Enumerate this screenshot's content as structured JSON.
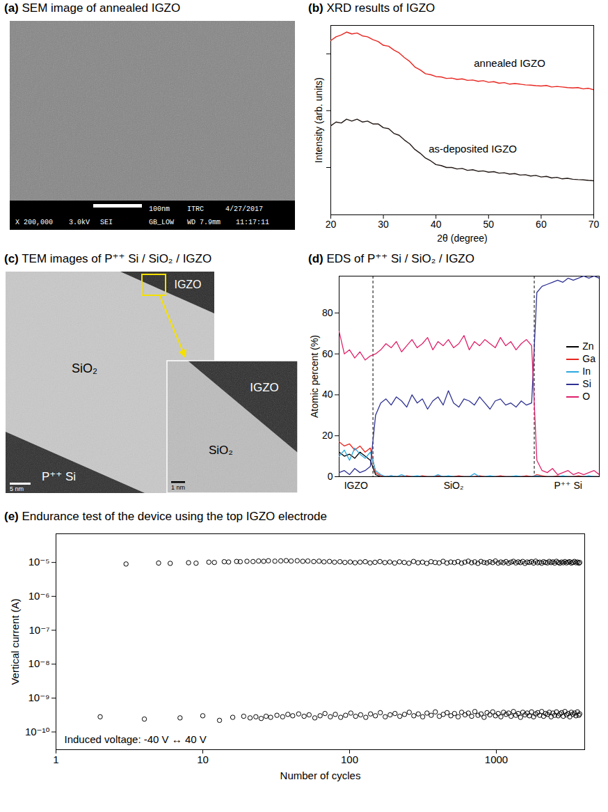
{
  "chart_data": [
    {
      "type": "image",
      "title": "(a) SEM image of annealed IGZO",
      "annotations": [
        "X 200,000",
        "3.0kV",
        "SEI",
        "100nm",
        "ITRC",
        "4/27/2017",
        "GB_LOW",
        "WD 7.9mm",
        "11:17:11"
      ]
    },
    {
      "type": "line",
      "title": "(b) XRD results of IGZO",
      "x_label": "2θ (degree)",
      "y_label": "Intensity (arb. units)",
      "xlim": [
        20,
        70
      ],
      "xticks": [
        20,
        30,
        40,
        50,
        60,
        70
      ],
      "ylim": [
        0,
        10
      ],
      "yticks": [
        2.5,
        5.5,
        8.5
      ],
      "tick_labels": "x",
      "x": [
        20,
        21,
        22,
        23,
        24,
        25,
        26,
        27,
        28,
        29,
        30,
        31,
        32,
        33,
        34,
        35,
        36,
        37,
        38,
        39,
        40,
        41,
        42,
        43,
        44,
        45,
        46,
        47,
        48,
        49,
        50,
        51,
        52,
        53,
        54,
        55,
        56,
        57,
        58,
        59,
        60,
        61,
        62,
        63,
        64,
        65,
        66,
        67,
        68,
        69,
        70
      ],
      "series": [
        {
          "name": "annealed IGZO",
          "color": "#e8251f",
          "values": [
            9.2,
            9.4,
            9.5,
            9.65,
            9.55,
            9.6,
            9.45,
            9.4,
            9.25,
            9.15,
            8.95,
            8.9,
            8.7,
            8.55,
            8.3,
            8.1,
            7.8,
            7.65,
            7.45,
            7.4,
            7.3,
            7.28,
            7.2,
            7.22,
            7.15,
            7.18,
            7.1,
            7.12,
            7.05,
            7.08,
            7.0,
            7.03,
            6.95,
            6.98,
            6.9,
            6.93,
            6.9,
            6.86,
            6.85,
            6.82,
            6.8,
            6.83,
            6.75,
            6.78,
            6.75,
            6.72,
            6.7,
            6.72,
            6.65,
            6.68,
            6.6
          ]
        },
        {
          "name": "as-deposited IGZO",
          "color": "#231815",
          "values": [
            4.7,
            4.9,
            4.85,
            5.05,
            4.95,
            5.05,
            4.9,
            4.95,
            4.8,
            4.8,
            4.6,
            4.55,
            4.3,
            4.2,
            3.95,
            3.75,
            3.45,
            3.25,
            3.0,
            2.85,
            2.65,
            2.6,
            2.5,
            2.5,
            2.42,
            2.45,
            2.35,
            2.38,
            2.3,
            2.32,
            2.25,
            2.28,
            2.2,
            2.22,
            2.15,
            2.18,
            2.1,
            2.12,
            2.05,
            2.08,
            2.0,
            2.03,
            1.95,
            1.98,
            1.9,
            1.93,
            1.88,
            1.86,
            1.85,
            1.82,
            1.8
          ]
        }
      ]
    },
    {
      "type": "image",
      "title": "(c) TEM images of P⁺⁺ Si / SiO₂ / IGZO",
      "annotations": [
        "IGZO",
        "SiO₂",
        "P⁺⁺ Si",
        "5 nm",
        "IGZO",
        "SiO₂",
        "1 nm"
      ]
    },
    {
      "type": "line",
      "title": "(d) EDS of P⁺⁺ Si / SiO₂ / IGZO",
      "y_label": "Atomic percent (%)",
      "xlim": [
        0,
        100
      ],
      "xticks": [
        {
          "value": 6.5,
          "label": "IGZO"
        },
        {
          "value": 44,
          "label": "SiO₂"
        },
        {
          "value": 88,
          "label": "P⁺⁺ Si"
        }
      ],
      "ylim": [
        0,
        98
      ],
      "yticks": [
        0,
        20,
        40,
        60,
        80
      ],
      "boundaries": [
        13,
        75
      ],
      "legend": "right",
      "x": [
        0,
        2,
        4,
        6,
        8,
        10,
        12,
        14,
        16,
        18,
        20,
        22,
        24,
        26,
        28,
        30,
        32,
        34,
        36,
        38,
        40,
        42,
        44,
        46,
        48,
        50,
        52,
        54,
        56,
        58,
        60,
        62,
        64,
        66,
        68,
        70,
        72,
        74,
        76,
        78,
        80,
        82,
        84,
        86,
        88,
        90,
        92,
        94,
        96,
        98,
        100
      ],
      "series": [
        {
          "name": "Zn",
          "color": "#000000",
          "values": [
            12,
            10,
            11,
            9,
            12,
            10,
            8,
            1,
            0,
            0,
            0,
            0,
            0,
            0,
            0,
            0,
            0,
            0,
            0,
            0,
            0,
            0,
            0,
            0,
            0,
            0,
            0,
            0,
            0,
            0,
            0,
            0,
            0,
            0,
            0,
            0,
            0,
            0,
            0,
            0,
            0,
            0,
            0,
            0,
            0,
            0,
            0,
            0,
            0,
            0,
            0
          ]
        },
        {
          "name": "Ga",
          "color": "#e8251f",
          "values": [
            17,
            15,
            16,
            13,
            15,
            12,
            14,
            2,
            0.5,
            0,
            0.5,
            0,
            0,
            0.5,
            0,
            0,
            0.5,
            0,
            0,
            0.5,
            0,
            0,
            0,
            0.5,
            0,
            0,
            0,
            0.5,
            0,
            0,
            0,
            0.5,
            0,
            0,
            0,
            0,
            0.5,
            0,
            1,
            0.5,
            0,
            0,
            0.5,
            0,
            0,
            0,
            0.5,
            0,
            0,
            0,
            0
          ]
        },
        {
          "name": "In",
          "color": "#29a9e0",
          "values": [
            10,
            13,
            8,
            14,
            11,
            9,
            12,
            3,
            1,
            0,
            0.5,
            0,
            1,
            0,
            0,
            0.5,
            0,
            0,
            0,
            1,
            0,
            0.5,
            0,
            0,
            0,
            0,
            1.5,
            0,
            0,
            0.5,
            0,
            0,
            0,
            0,
            0.5,
            0,
            0,
            0,
            0.5,
            0,
            0,
            0,
            0,
            0.5,
            0,
            0,
            0,
            0,
            0.5,
            0,
            0
          ]
        },
        {
          "name": "Si",
          "color": "#2e3192",
          "values": [
            2,
            3,
            1,
            4,
            2,
            3,
            5,
            30,
            36,
            38,
            35,
            39,
            37,
            34,
            40,
            36,
            38,
            33,
            37,
            39,
            35,
            42,
            36,
            34,
            38,
            37,
            35,
            39,
            36,
            33,
            37,
            38,
            35,
            36,
            34,
            37,
            35,
            36,
            90,
            93,
            94,
            95,
            96,
            95,
            97,
            96,
            97,
            98,
            97,
            98,
            97
          ]
        },
        {
          "name": "O",
          "color": "#e0206a",
          "values": [
            71,
            60,
            62,
            58,
            61,
            57,
            59,
            60,
            62,
            65,
            63,
            66,
            61,
            64,
            67,
            63,
            65,
            68,
            62,
            66,
            64,
            67,
            63,
            65,
            69,
            62,
            66,
            64,
            67,
            65,
            63,
            68,
            64,
            66,
            62,
            65,
            67,
            64,
            8,
            3,
            2,
            4,
            1,
            2,
            3,
            1,
            2,
            1,
            2,
            3,
            1
          ]
        }
      ]
    },
    {
      "type": "scatter",
      "title": "(e) Endurance test of the device using the top IGZO electrode",
      "x_label": "Number of cycles",
      "y_label": "Vertical current (A)",
      "log": true,
      "xlim": [
        1,
        4000
      ],
      "xticks": [
        1,
        10,
        100,
        1000
      ],
      "ylim": [
        3e-11,
        7e-05
      ],
      "yticks": [
        {
          "value": 1e-10,
          "label": "10⁻¹⁰"
        },
        {
          "value": 1e-09,
          "label": "10⁻⁹"
        },
        {
          "value": 1e-08,
          "label": "10⁻⁸"
        },
        {
          "value": 1e-07,
          "label": "10⁻⁷"
        },
        {
          "value": 1e-06,
          "label": "10⁻⁶"
        },
        {
          "value": 1e-05,
          "label": "10⁻⁵"
        }
      ],
      "annotations": [
        "Induced voltage: -40 V ↔ 40 V"
      ],
      "marker": "circle",
      "color": "#000000",
      "series": [
        {
          "x": [
            3,
            5,
            6,
            8,
            9,
            11,
            12,
            14,
            15,
            17,
            18,
            20,
            22,
            24,
            26,
            28,
            31,
            34,
            37,
            40,
            44,
            48,
            52,
            57,
            62,
            67,
            73,
            79,
            86,
            93,
            101,
            109,
            118,
            128,
            138,
            149,
            161,
            174,
            188,
            203,
            219,
            236,
            254,
            273,
            293,
            314,
            336,
            359,
            383,
            408,
            434,
            461,
            489,
            518,
            548,
            579,
            611,
            644,
            678,
            713,
            749,
            786,
            824,
            863,
            903,
            944,
            986,
            1029,
            1073,
            1118,
            1164,
            1211,
            1259,
            1308,
            1358,
            1409,
            1461,
            1514,
            1568,
            1623,
            1679,
            1736,
            1794,
            1853,
            1913,
            1974,
            2036,
            2099,
            2163,
            2228,
            2294,
            2361,
            2429,
            2498,
            2568,
            2639,
            2711,
            2784,
            2858,
            2933,
            3009,
            3086,
            3164,
            3243,
            3323,
            3404,
            3486,
            3569,
            3653,
            3700
          ],
          "values": [
            9e-06,
            9.6e-06,
            9.4e-06,
            9.8e-06,
            9.5e-06,
            1.02e-05,
            1e-05,
            1.05e-05,
            1.03e-05,
            1.07e-05,
            1.05e-05,
            1.08e-05,
            1.06e-05,
            1.1e-05,
            1.08e-05,
            1.12e-05,
            1.09e-05,
            1.11e-05,
            1.13e-05,
            1.1e-05,
            1.12e-05,
            1.08e-05,
            1.1e-05,
            1.06e-05,
            1.09e-05,
            1.04e-05,
            1.07e-05,
            1.02e-05,
            1.05e-05,
            1e-05,
            1.03e-05,
            9.8e-06,
            1.02e-05,
            1.05e-05,
            9.7e-06,
            1.01e-05,
            1.06e-05,
            9.9e-06,
            1.03e-05,
            9.6e-06,
            1.04e-05,
            1e-05,
            9.5e-06,
            1.07e-05,
            9.8e-06,
            1.02e-05,
            9.4e-06,
            1.05e-05,
            1e-05,
            9.7e-06,
            1.08e-05,
            9.6e-06,
            1.03e-05,
            9.9e-06,
            1.06e-05,
            9.5e-06,
            1.02e-05,
            1.09e-05,
            9.8e-06,
            1.04e-05,
            9.4e-06,
            1.07e-05,
            1e-05,
            9.7e-06,
            1.05e-05,
            9.9e-06,
            1.1e-05,
            9.6e-06,
            1.03e-05,
            9.8e-06,
            1.06e-05,
            9.5e-06,
            1.02e-05,
            1.08e-05,
            9.7e-06,
            1.04e-05,
            9.9e-06,
            1.07e-05,
            9.4e-06,
            1.03e-05,
            1e-05,
            1.06e-05,
            9.6e-06,
            1.09e-05,
            9.8e-06,
            1.02e-05,
            9.5e-06,
            1.05e-05,
            1e-05,
            9.7e-06,
            1.07e-05,
            9.9e-06,
            1.04e-05,
            9.6e-06,
            1.08e-05,
            1e-05,
            9.5e-06,
            1.03e-05,
            9.8e-06,
            1.06e-05,
            9.7e-06,
            1.02e-05,
            1.05e-05,
            9.6e-06,
            1e-05,
            1.07e-05,
            9.8e-06,
            1.03e-05,
            9.5e-06,
            1e-05
          ]
        },
        {
          "x": [
            2,
            4,
            7,
            10,
            13,
            16,
            19,
            21,
            23,
            25,
            27,
            29,
            32,
            35,
            38,
            41,
            45,
            49,
            53,
            58,
            63,
            68,
            74,
            80,
            87,
            94,
            102,
            110,
            119,
            129,
            139,
            150,
            162,
            175,
            189,
            204,
            220,
            237,
            255,
            274,
            294,
            315,
            337,
            360,
            384,
            409,
            435,
            462,
            490,
            519,
            549,
            580,
            612,
            645,
            679,
            714,
            750,
            787,
            825,
            864,
            904,
            945,
            987,
            1030,
            1074,
            1119,
            1165,
            1212,
            1260,
            1309,
            1359,
            1410,
            1462,
            1515,
            1569,
            1624,
            1680,
            1737,
            1795,
            1854,
            1914,
            1975,
            2037,
            2100,
            2164,
            2229,
            2295,
            2362,
            2430,
            2499,
            2569,
            2640,
            2712,
            2785,
            2859,
            2934,
            3010,
            3087,
            3165,
            3244,
            3324,
            3405,
            3487,
            3570,
            3654,
            3699
          ],
          "values": [
            2.8e-10,
            2.4e-10,
            2.6e-10,
            3e-10,
            2.2e-10,
            2.7e-10,
            2.9e-10,
            2.6e-10,
            2.8e-10,
            2.5e-10,
            2.9e-10,
            2.7e-10,
            3.1e-10,
            2.8e-10,
            3.3e-10,
            3e-10,
            3.4e-10,
            2.9e-10,
            3.2e-10,
            2.6e-10,
            3e-10,
            3.5e-10,
            2.8e-10,
            3.3e-10,
            2.7e-10,
            3.1e-10,
            3.6e-10,
            2.9e-10,
            3.2e-10,
            2.7e-10,
            3.4e-10,
            3e-10,
            3.7e-10,
            2.8e-10,
            3.2e-10,
            3.5e-10,
            2.9e-10,
            3.3e-10,
            3.8e-10,
            3e-10,
            3.4e-10,
            2.8e-10,
            3.6e-10,
            3.1e-10,
            3.9e-10,
            2.9e-10,
            3.3e-10,
            3.7e-10,
            3e-10,
            3.5e-10,
            2.8e-10,
            3.8e-10,
            3.2e-10,
            3.6e-10,
            2.9e-10,
            4e-10,
            3.1e-10,
            3.4e-10,
            2.7e-10,
            3.7e-10,
            3.2e-10,
            3.9e-10,
            3e-10,
            3.5e-10,
            2.8e-10,
            3.8e-10,
            3.3e-10,
            3.6e-10,
            2.9e-10,
            4e-10,
            3.1e-10,
            3.5e-10,
            2.7e-10,
            3.8e-10,
            3.2e-10,
            3.6e-10,
            3e-10,
            3.9e-10,
            2.8e-10,
            3.4e-10,
            3.7e-10,
            3.1e-10,
            4e-10,
            2.9e-10,
            3.5e-10,
            3.3e-10,
            3.8e-10,
            2.8e-10,
            3.6e-10,
            3.1e-10,
            3.9e-10,
            3e-10,
            3.4e-10,
            3.7e-10,
            2.9e-10,
            4e-10,
            3.2e-10,
            3.5e-10,
            2.8e-10,
            3.8e-10,
            3.3e-10,
            3.6e-10,
            3e-10,
            3.9e-10,
            3.1e-10,
            3.4e-10
          ]
        }
      ]
    }
  ]
}
